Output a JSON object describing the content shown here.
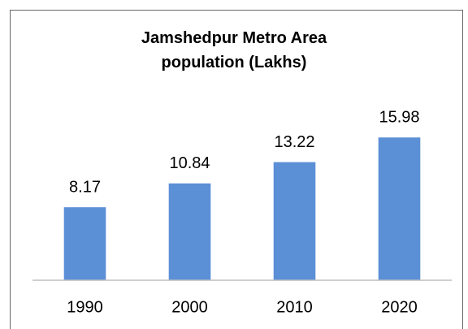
{
  "chart_data": {
    "type": "bar",
    "title": "Jamshedpur Metro Area population (Lakhs)",
    "categories": [
      "1990",
      "2000",
      "2010",
      "2020"
    ],
    "values": [
      8.17,
      10.84,
      13.22,
      15.98
    ],
    "color": "#5b8fd6",
    "ylim": [
      0,
      18
    ],
    "grid": false
  }
}
